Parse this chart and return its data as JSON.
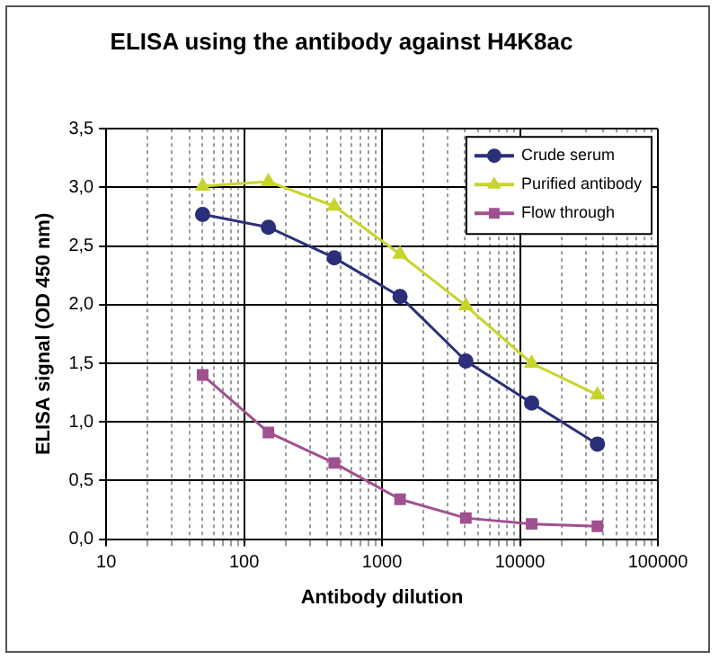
{
  "chart_data": {
    "type": "line",
    "title": "ELISA using the antibody against H4K8ac",
    "xlabel": "Antibody dilution",
    "ylabel": "ELISA signal (OD 450 nm)",
    "log": "x",
    "grid": true,
    "legend": "top right",
    "x": [
      50,
      150,
      450,
      1350,
      4050,
      12150,
      36450
    ],
    "xlim": [
      10,
      100000
    ],
    "xticks": [
      10,
      {
        "value": 20,
        "label": null
      },
      {
        "value": 30,
        "label": null
      },
      {
        "value": 40,
        "label": null
      },
      {
        "value": 50,
        "label": null
      },
      {
        "value": 60,
        "label": null
      },
      {
        "value": 70,
        "label": null
      },
      {
        "value": 80,
        "label": null
      },
      {
        "value": 90,
        "label": null
      },
      100,
      {
        "value": 200,
        "label": null
      },
      {
        "value": 300,
        "label": null
      },
      {
        "value": 400,
        "label": null
      },
      {
        "value": 500,
        "label": null
      },
      {
        "value": 600,
        "label": null
      },
      {
        "value": 700,
        "label": null
      },
      {
        "value": 800,
        "label": null
      },
      {
        "value": 900,
        "label": null
      },
      1000,
      {
        "value": 2000,
        "label": null
      },
      {
        "value": 3000,
        "label": null
      },
      {
        "value": 4000,
        "label": null
      },
      {
        "value": 5000,
        "label": null
      },
      {
        "value": 6000,
        "label": null
      },
      {
        "value": 7000,
        "label": null
      },
      {
        "value": 8000,
        "label": null
      },
      {
        "value": 9000,
        "label": null
      },
      10000,
      {
        "value": 20000,
        "label": null
      },
      {
        "value": 30000,
        "label": null
      },
      {
        "value": 40000,
        "label": null
      },
      {
        "value": 50000,
        "label": null
      },
      {
        "value": 60000,
        "label": null
      },
      {
        "value": 70000,
        "label": null
      },
      {
        "value": 80000,
        "label": null
      },
      {
        "value": 90000,
        "label": null
      },
      100000
    ],
    "ylim": [
      0,
      3.5
    ],
    "yticks": [
      {
        "value": 0,
        "label": "0,0"
      },
      {
        "value": 0.5,
        "label": "0,5"
      },
      {
        "value": 1,
        "label": "1,0"
      },
      {
        "value": 1.5,
        "label": "1,5"
      },
      {
        "value": 2,
        "label": "2,0"
      },
      {
        "value": 2.5,
        "label": "2,5"
      },
      {
        "value": 3,
        "label": "3,0"
      },
      {
        "value": 3.5,
        "label": "3,5"
      }
    ],
    "series": [
      {
        "name": "Crude serum",
        "color": "#2b2f7a",
        "marker": "circle",
        "values": [
          2.77,
          2.66,
          2.4,
          2.07,
          1.52,
          1.16,
          0.81
        ]
      },
      {
        "name": "Purified antibody",
        "color": "#c8d42c",
        "marker": "triangle",
        "values": [
          3.01,
          3.05,
          2.84,
          2.43,
          1.99,
          1.5,
          1.23
        ]
      },
      {
        "name": "Flow through",
        "color": "#a0508f",
        "marker": "square",
        "values": [
          1.4,
          0.91,
          0.65,
          0.34,
          0.18,
          0.13,
          0.11
        ]
      }
    ]
  }
}
